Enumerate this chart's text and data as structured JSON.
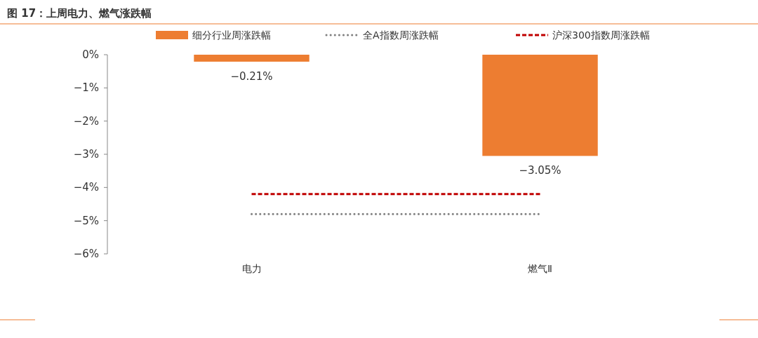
{
  "chart_data": {
    "type": "bar",
    "title": "图 17：上周电力、燃气涨跌幅",
    "categories": [
      "电力",
      "燃气Ⅱ"
    ],
    "series": [
      {
        "name": "细分行业周涨跌幅",
        "color": "#ed7d31",
        "values": [
          -0.21,
          -3.05
        ],
        "value_labels": [
          "−0.21%",
          "−3.05%"
        ]
      },
      {
        "name": "全A指数周涨跌幅",
        "type": "line",
        "color": "#7f7f7f",
        "line_style": "dotted",
        "values": [
          -4.8,
          -4.8
        ]
      },
      {
        "name": "沪深300指数周涨跌幅",
        "type": "line",
        "color": "#c00000",
        "line_style": "dashed",
        "values": [
          -4.2,
          -4.2
        ]
      }
    ],
    "ylim": [
      -6,
      0
    ],
    "yticks": [
      {
        "value": 0,
        "label": "0%"
      },
      {
        "value": -1,
        "label": "−1%"
      },
      {
        "value": -2,
        "label": "−2%"
      },
      {
        "value": -3,
        "label": "−3%"
      },
      {
        "value": -4,
        "label": "−4%"
      },
      {
        "value": -5,
        "label": "−5%"
      },
      {
        "value": -6,
        "label": "−6%"
      }
    ],
    "legend": "top"
  }
}
